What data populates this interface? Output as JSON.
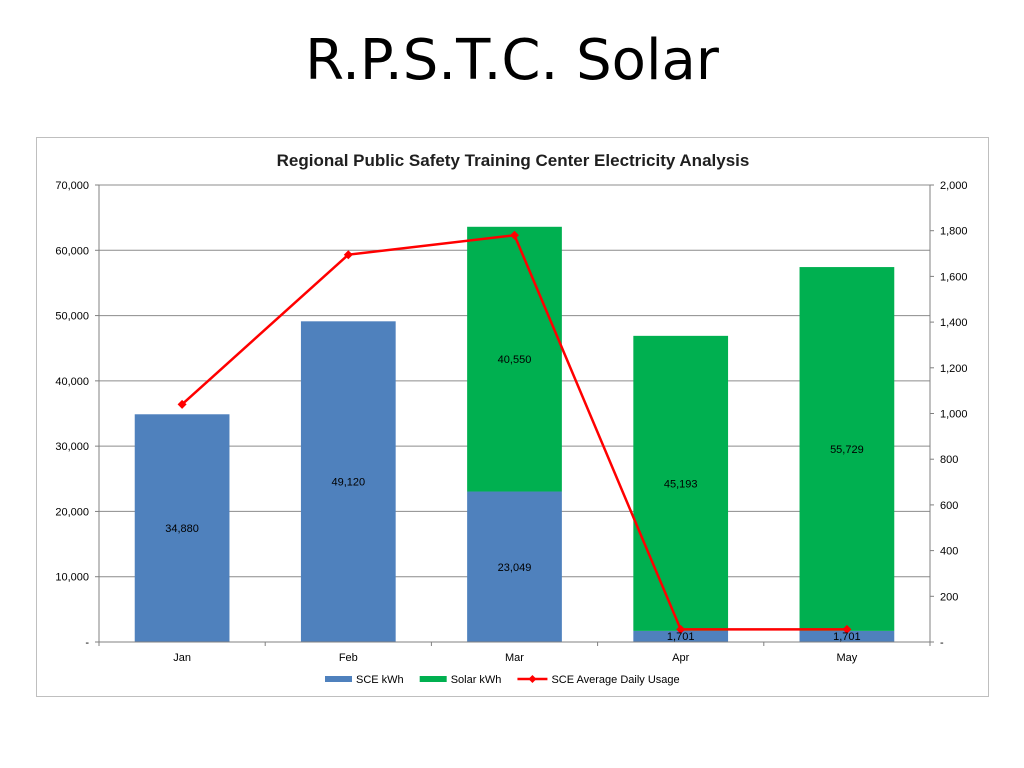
{
  "slide": {
    "title": "R.P.S.T.C. Solar"
  },
  "chart_data": {
    "type": "bar",
    "stacked": true,
    "title": "Regional Public Safety Training Center Electricity Analysis",
    "categories": [
      "Jan",
      "Feb",
      "Mar",
      "Apr",
      "May"
    ],
    "series": [
      {
        "name": "SCE kWh",
        "kind": "bar",
        "axis": "left",
        "color": "#4f81bd",
        "values": [
          34880,
          49120,
          23049,
          1701,
          1701
        ],
        "labels": [
          "34,880",
          "49,120",
          "23,049",
          "1,701",
          "1,701"
        ]
      },
      {
        "name": "Solar kWh",
        "kind": "bar",
        "axis": "left",
        "color": "#00b050",
        "values": [
          0,
          0,
          40550,
          45193,
          55729
        ],
        "labels": [
          "",
          "",
          "40,550",
          "45,193",
          "55,729"
        ]
      },
      {
        "name": "SCE Average Daily Usage",
        "kind": "line",
        "axis": "right",
        "color": "#ff0000",
        "values": [
          1040,
          1695,
          1780,
          55,
          55
        ]
      }
    ],
    "ylim": [
      0,
      70000
    ],
    "y2lim": [
      0,
      2000
    ],
    "y_ticks": [
      0,
      10000,
      20000,
      30000,
      40000,
      50000,
      60000,
      70000
    ],
    "y_tick_labels": [
      "-",
      "10,000",
      "20,000",
      "30,000",
      "40,000",
      "50,000",
      "60,000",
      "70,000"
    ],
    "y2_ticks": [
      0,
      200,
      400,
      600,
      800,
      1000,
      1200,
      1400,
      1600,
      1800,
      2000
    ],
    "y2_tick_labels": [
      "-",
      "200",
      "400",
      "600",
      "800",
      "1,000",
      "1,200",
      "1,400",
      "1,600",
      "1,800",
      "2,000"
    ],
    "grid": true,
    "legend_position": "bottom"
  }
}
